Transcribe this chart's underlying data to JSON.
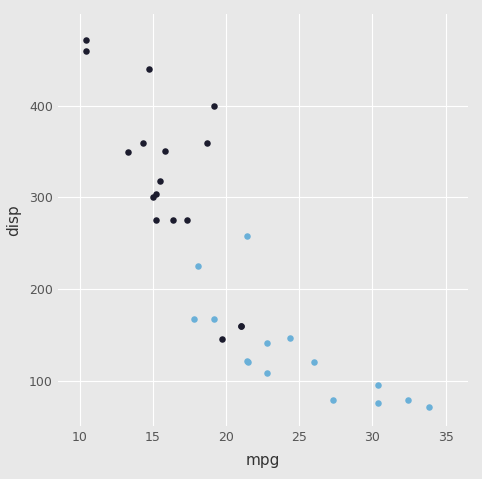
{
  "title": "",
  "xlabel": "mpg",
  "ylabel": "disp",
  "background_color": "#e8e8e8",
  "grid_color": "#ffffff",
  "xlim": [
    8.5,
    36.5
  ],
  "ylim": [
    50,
    500
  ],
  "xticks": [
    10,
    15,
    20,
    25,
    30,
    35
  ],
  "yticks": [
    100,
    200,
    300,
    400
  ],
  "points": [
    {
      "mpg": 21.0,
      "disp": 160.0,
      "engine": 0
    },
    {
      "mpg": 21.0,
      "disp": 160.0,
      "engine": 0
    },
    {
      "mpg": 22.8,
      "disp": 108.0,
      "engine": 1
    },
    {
      "mpg": 21.4,
      "disp": 258.0,
      "engine": 1
    },
    {
      "mpg": 18.7,
      "disp": 360.0,
      "engine": 0
    },
    {
      "mpg": 18.1,
      "disp": 225.0,
      "engine": 1
    },
    {
      "mpg": 14.3,
      "disp": 360.0,
      "engine": 0
    },
    {
      "mpg": 24.4,
      "disp": 146.7,
      "engine": 1
    },
    {
      "mpg": 22.8,
      "disp": 140.8,
      "engine": 1
    },
    {
      "mpg": 19.2,
      "disp": 167.6,
      "engine": 1
    },
    {
      "mpg": 17.8,
      "disp": 167.6,
      "engine": 1
    },
    {
      "mpg": 16.4,
      "disp": 275.8,
      "engine": 0
    },
    {
      "mpg": 17.3,
      "disp": 275.8,
      "engine": 0
    },
    {
      "mpg": 15.2,
      "disp": 275.8,
      "engine": 0
    },
    {
      "mpg": 10.4,
      "disp": 472.0,
      "engine": 0
    },
    {
      "mpg": 10.4,
      "disp": 460.0,
      "engine": 0
    },
    {
      "mpg": 14.7,
      "disp": 440.0,
      "engine": 0
    },
    {
      "mpg": 32.4,
      "disp": 78.7,
      "engine": 1
    },
    {
      "mpg": 30.4,
      "disp": 75.7,
      "engine": 1
    },
    {
      "mpg": 33.9,
      "disp": 71.1,
      "engine": 1
    },
    {
      "mpg": 21.5,
      "disp": 120.1,
      "engine": 1
    },
    {
      "mpg": 15.5,
      "disp": 318.0,
      "engine": 0
    },
    {
      "mpg": 15.2,
      "disp": 304.0,
      "engine": 0
    },
    {
      "mpg": 13.3,
      "disp": 350.0,
      "engine": 0
    },
    {
      "mpg": 19.2,
      "disp": 400.0,
      "engine": 0
    },
    {
      "mpg": 27.3,
      "disp": 79.0,
      "engine": 1
    },
    {
      "mpg": 26.0,
      "disp": 120.3,
      "engine": 1
    },
    {
      "mpg": 30.4,
      "disp": 95.1,
      "engine": 1
    },
    {
      "mpg": 15.8,
      "disp": 351.0,
      "engine": 0
    },
    {
      "mpg": 19.7,
      "disp": 145.0,
      "engine": 0
    },
    {
      "mpg": 15.0,
      "disp": 301.0,
      "engine": 0
    },
    {
      "mpg": 21.4,
      "disp": 121.0,
      "engine": 1
    }
  ],
  "color_0": "#1c1c2e",
  "color_1": "#6ab0d8",
  "marker_size": 22,
  "tick_labelsize": 9,
  "label_fontsize": 11
}
